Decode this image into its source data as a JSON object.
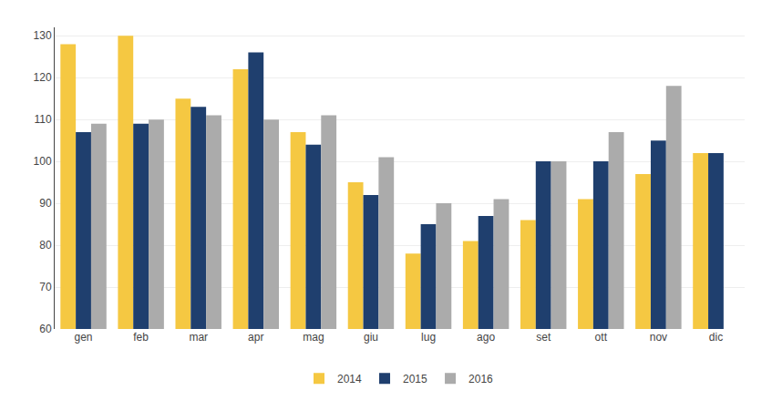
{
  "chart_data": {
    "type": "bar",
    "categories": [
      "gen",
      "feb",
      "mar",
      "apr",
      "mag",
      "giu",
      "lug",
      "ago",
      "set",
      "ott",
      "nov",
      "dic"
    ],
    "series": [
      {
        "name": "2014",
        "color": "#F5C842",
        "values": [
          128,
          130,
          115,
          122,
          107,
          95,
          78,
          81,
          86,
          91,
          97,
          102
        ]
      },
      {
        "name": "2015",
        "color": "#1F3F6E",
        "values": [
          107,
          109,
          113,
          126,
          104,
          92,
          85,
          87,
          100,
          100,
          105,
          102
        ]
      },
      {
        "name": "2016",
        "color": "#ABABAB",
        "values": [
          109,
          110,
          111,
          110,
          111,
          101,
          90,
          91,
          100,
          107,
          118,
          null
        ]
      }
    ],
    "ylim": [
      60,
      132
    ],
    "yticks": [
      60,
      70,
      80,
      90,
      100,
      110,
      120,
      130
    ],
    "grid": true,
    "legend": "bottom"
  }
}
